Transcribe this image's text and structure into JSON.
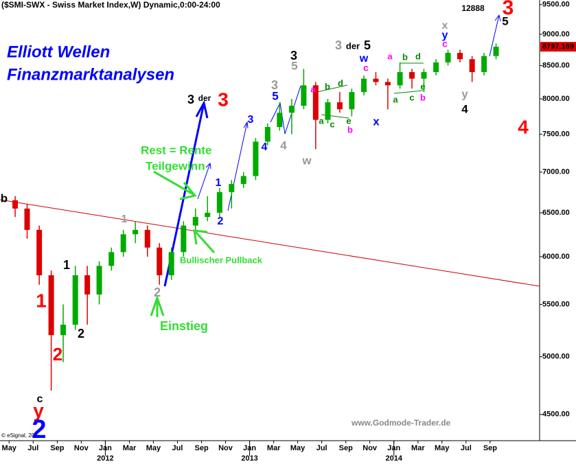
{
  "chart_data": {
    "type": "candlestick",
    "header": "($SMI-SWX - Swiss Market Index,W) Dynamic,0:00-24:00",
    "brand_line1": "Elliott Wellen",
    "brand_line2": "Finanzmarktanalysen",
    "source": "www.Godmode-Trader.de",
    "copyright": "© eSignal, 20",
    "log_scale": true,
    "up_color": "#00aa00",
    "down_color": "#dd0000",
    "price_label_color": "#dd0000",
    "x": [
      2011.375,
      2011.458,
      2011.542,
      2011.625,
      2011.708,
      2011.792,
      2011.875,
      2011.958,
      2012.042,
      2012.125,
      2012.208,
      2012.292,
      2012.375,
      2012.458,
      2012.542,
      2012.625,
      2012.708,
      2012.792,
      2012.875,
      2012.958,
      2013.042,
      2013.125,
      2013.208,
      2013.292,
      2013.375,
      2013.458,
      2013.542,
      2013.625,
      2013.708,
      2013.792,
      2013.875,
      2013.958,
      2014.042,
      2014.125,
      2014.208,
      2014.292,
      2014.375,
      2014.458,
      2014.542,
      2014.625,
      2014.708
    ],
    "open": [
      6650,
      6550,
      6300,
      5800,
      5200,
      5300,
      5800,
      5600,
      5900,
      6050,
      6250,
      6300,
      6100,
      5800,
      6050,
      6350,
      6450,
      6500,
      6750,
      6850,
      6950,
      7400,
      7600,
      7800,
      7900,
      8200,
      7700,
      7950,
      7850,
      8100,
      8300,
      8250,
      8200,
      8400,
      8300,
      8400,
      8550,
      8700,
      8600,
      8400,
      8650
    ],
    "high": [
      6700,
      6600,
      6350,
      5850,
      5500,
      5900,
      5900,
      5950,
      6100,
      6300,
      6400,
      6350,
      6150,
      6100,
      6400,
      6550,
      6700,
      6800,
      6900,
      7000,
      7450,
      7650,
      7950,
      8000,
      8450,
      8250,
      8000,
      8100,
      8150,
      8350,
      8400,
      8300,
      8550,
      8450,
      8450,
      8600,
      8750,
      8750,
      8650,
      8700,
      8850
    ],
    "low": [
      6450,
      6200,
      5700,
      4700,
      4950,
      5250,
      5300,
      5500,
      5850,
      6000,
      6150,
      6000,
      5700,
      5750,
      6000,
      6300,
      6400,
      6450,
      6550,
      6800,
      6900,
      7350,
      7550,
      7500,
      7850,
      7300,
      7650,
      7800,
      7750,
      8050,
      8200,
      7850,
      8150,
      8150,
      8100,
      8350,
      8500,
      8550,
      8250,
      8350,
      8600
    ],
    "close": [
      6550,
      6300,
      5800,
      5200,
      5300,
      5800,
      5600,
      5900,
      6050,
      6250,
      6300,
      6100,
      5800,
      6050,
      6350,
      6450,
      6500,
      6750,
      6850,
      6950,
      7400,
      7600,
      7800,
      7900,
      8200,
      7700,
      7950,
      7850,
      8100,
      8300,
      8250,
      8200,
      8400,
      8300,
      8400,
      8550,
      8700,
      8600,
      8400,
      8650,
      8797.169
    ],
    "xlim": [
      2011.27,
      2015.01
    ],
    "ylim": [
      4290,
      9580
    ],
    "yticks": [
      {
        "value": 4500,
        "label": "4500.00"
      },
      {
        "value": 5000,
        "label": "5000.00"
      },
      {
        "value": 5500,
        "label": "5500.00"
      },
      {
        "value": 6000,
        "label": "6000.00"
      },
      {
        "value": 6500,
        "label": "6500.00"
      },
      {
        "value": 7000,
        "label": "7000.00"
      },
      {
        "value": 7500,
        "label": "7500.00"
      },
      {
        "value": 8000,
        "label": "8000.00"
      },
      {
        "value": 8500,
        "label": "8500.00"
      },
      {
        "value": 9000,
        "label": "9000.00"
      },
      {
        "value": 9500,
        "label": "9500.00"
      }
    ],
    "xticks": [
      {
        "value": 2011.333,
        "label": "May"
      },
      {
        "value": 2011.5,
        "label": "Jul"
      },
      {
        "value": 2011.667,
        "label": "Sep"
      },
      {
        "value": 2011.833,
        "label": "Nov"
      },
      {
        "value": 2012.0,
        "label": "Jan"
      },
      {
        "value": 2012.167,
        "label": "Mar"
      },
      {
        "value": 2012.333,
        "label": "May"
      },
      {
        "value": 2012.5,
        "label": "Jul"
      },
      {
        "value": 2012.667,
        "label": "Sep"
      },
      {
        "value": 2012.833,
        "label": "Nov"
      },
      {
        "value": 2013.0,
        "label": "Jan"
      },
      {
        "value": 2013.167,
        "label": "Mar"
      },
      {
        "value": 2013.333,
        "label": "May"
      },
      {
        "value": 2013.5,
        "label": "Jul"
      },
      {
        "value": 2013.667,
        "label": "Sep"
      },
      {
        "value": 2013.833,
        "label": "Nov"
      },
      {
        "value": 2014.0,
        "label": "Jan"
      },
      {
        "value": 2014.167,
        "label": "Mar"
      },
      {
        "value": 2014.333,
        "label": "May"
      },
      {
        "value": 2014.5,
        "label": "Jul"
      },
      {
        "value": 2014.667,
        "label": "Sep"
      }
    ],
    "year_ticks": [
      2012,
      2013,
      2014
    ],
    "annotations": [
      {
        "text": "b",
        "color": "#000000"
      },
      {
        "text": "1",
        "color": "#ff0000"
      },
      {
        "text": "2",
        "color": "#ff0000"
      },
      {
        "text": "c",
        "color": "#000000"
      },
      {
        "text": "y",
        "color": "#ff0000"
      },
      {
        "text": "2",
        "color": "#0000ff"
      },
      {
        "text": "1",
        "color": "#000000"
      },
      {
        "text": "2",
        "color": "#000000"
      },
      {
        "text": "1",
        "color": "#999999"
      },
      {
        "text": "2",
        "color": "#999999"
      },
      {
        "text": "Einstieg",
        "color": "#33dd33"
      },
      {
        "text": "Rest = Rente",
        "color": "#33dd33"
      },
      {
        "text": "Teilgewinn",
        "color": "#33dd33"
      },
      {
        "text": "Bullischer Pullback",
        "color": "#33dd33"
      },
      {
        "text": "3",
        "color": "#000000"
      },
      {
        "text": "der",
        "color": "#000000"
      },
      {
        "text": "3",
        "color": "#ff0000"
      },
      {
        "text": "1",
        "color": "#0000ff"
      },
      {
        "text": "2",
        "color": "#0000ff"
      },
      {
        "text": "3",
        "color": "#0000ff"
      },
      {
        "text": "4",
        "color": "#0000ff"
      },
      {
        "text": "3",
        "color": "#999999"
      },
      {
        "text": "4",
        "color": "#999999"
      },
      {
        "text": "5",
        "color": "#0000ff"
      },
      {
        "text": "3",
        "color": "#000000"
      },
      {
        "text": "5",
        "color": "#999999"
      },
      {
        "text": "w",
        "color": "#999999"
      },
      {
        "text": "3",
        "color": "#999999"
      },
      {
        "text": "der",
        "color": "#000000"
      },
      {
        "text": "5",
        "color": "#000000"
      },
      {
        "text": "w",
        "color": "#0000ff"
      },
      {
        "text": "c",
        "color": "#ff00ff"
      },
      {
        "text": "x",
        "color": "#0000ff"
      },
      {
        "text": "a",
        "color": "#ff00ff"
      },
      {
        "text": "b",
        "color": "#008800"
      },
      {
        "text": "d",
        "color": "#008800"
      },
      {
        "text": "a",
        "color": "#008800"
      },
      {
        "text": "c",
        "color": "#008800"
      },
      {
        "text": "e",
        "color": "#008800"
      },
      {
        "text": "b",
        "color": "#ff00ff"
      },
      {
        "text": "a",
        "color": "#ff00ff"
      },
      {
        "text": "b",
        "color": "#008800"
      },
      {
        "text": "d",
        "color": "#008800"
      },
      {
        "text": "a",
        "color": "#008800"
      },
      {
        "text": "c",
        "color": "#008800"
      },
      {
        "text": "e",
        "color": "#008800"
      },
      {
        "text": "b",
        "color": "#ff00ff"
      },
      {
        "text": "x",
        "color": "#999999"
      },
      {
        "text": "y",
        "color": "#0000ff"
      },
      {
        "text": "c",
        "color": "#ff00ff"
      },
      {
        "text": "y",
        "color": "#999999"
      },
      {
        "text": "4",
        "color": "#000000"
      },
      {
        "text": "12888",
        "color": "#000000"
      },
      {
        "text": "3",
        "color": "#ff0000"
      },
      {
        "text": "5",
        "color": "#000000"
      },
      {
        "text": "4",
        "color": "#ff0000"
      }
    ]
  }
}
